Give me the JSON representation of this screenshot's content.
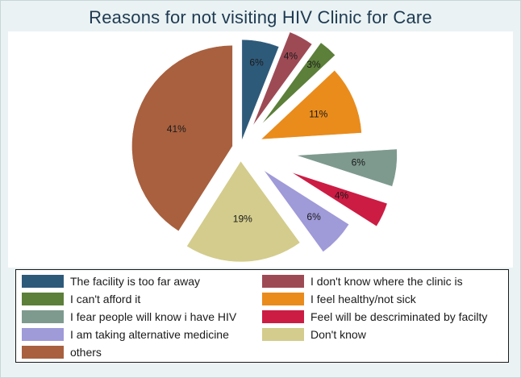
{
  "chart_data": {
    "type": "pie",
    "title": "Reasons for not visiting HIV Clinic for Care",
    "exploded": true,
    "legend_position": "bottom",
    "slices": [
      {
        "label": "The facility is too far away",
        "value": 6,
        "display": "6%",
        "color": "#2e5a7a"
      },
      {
        "label": "I don't know where the clinic is",
        "value": 4,
        "display": "4%",
        "color": "#9e4a55"
      },
      {
        "label": "I can't afford it",
        "value": 3,
        "display": "3%",
        "color": "#5c7f3a"
      },
      {
        "label": "I feel healthy/not sick",
        "value": 11,
        "display": "11%",
        "color": "#e98c1c"
      },
      {
        "label": "I fear people will know i have HIV",
        "value": 6,
        "display": "6%",
        "color": "#7e9a8f"
      },
      {
        "label": "Feel will be descriminated by facilty",
        "value": 4,
        "display": "4%",
        "color": "#cc1c44"
      },
      {
        "label": "I am taking alternative medicine",
        "value": 6,
        "display": "6%",
        "color": "#9f9ad8"
      },
      {
        "label": "Don't know",
        "value": 19,
        "display": "19%",
        "color": "#d3cc8c"
      },
      {
        "label": "others",
        "value": 41,
        "display": "41%",
        "color": "#a8603f"
      }
    ]
  }
}
